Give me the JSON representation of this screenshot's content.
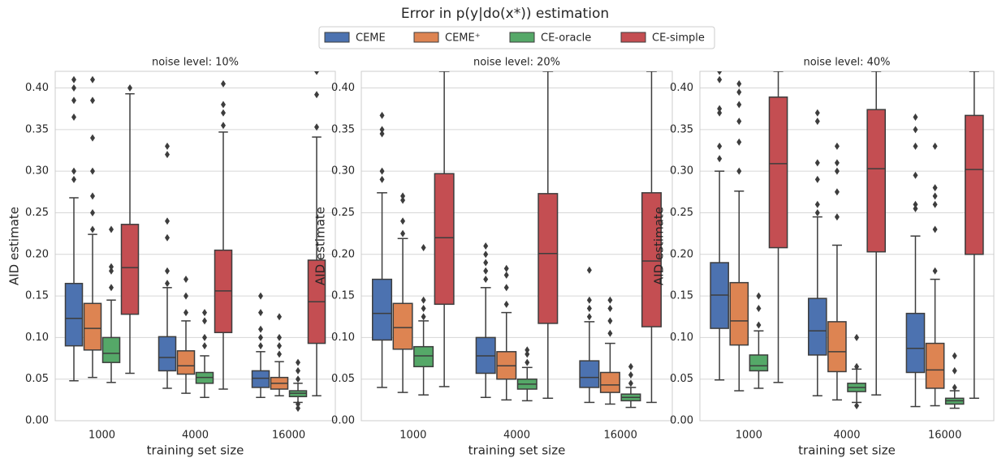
{
  "title": "Error in p(y|do(x*)) estimation",
  "chart_data": [
    {
      "type": "box",
      "title": "noise level: 10%",
      "xlabel": "training set size",
      "ylabel": "AID estimate",
      "categories": [
        "1000",
        "4000",
        "16000"
      ],
      "ylim": [
        0,
        0.42
      ],
      "yticks": [
        {
          "value": 0,
          "label": "0.00"
        },
        {
          "value": 0.05,
          "label": "0.05"
        },
        {
          "value": 0.1,
          "label": "0.10"
        },
        {
          "value": 0.15,
          "label": "0.15"
        },
        {
          "value": 0.2,
          "label": "0.20"
        },
        {
          "value": 0.25,
          "label": "0.25"
        },
        {
          "value": 0.3,
          "label": "0.30"
        },
        {
          "value": 0.35,
          "label": "0.35"
        },
        {
          "value": 0.4,
          "label": "0.40"
        }
      ],
      "grid": true,
      "series": [
        {
          "name": "CEME",
          "color": "#4c72b0",
          "values": [
            {
              "whislo": 0.048,
              "q1": 0.09,
              "med": 0.123,
              "q3": 0.165,
              "whishi": 0.268,
              "fliers": [
                0.29,
                0.3,
                0.365,
                0.385,
                0.4,
                0.41
              ]
            },
            {
              "whislo": 0.039,
              "q1": 0.06,
              "med": 0.076,
              "q3": 0.101,
              "whishi": 0.16,
              "fliers": [
                0.165,
                0.18,
                0.22,
                0.24,
                0.32,
                0.33
              ]
            },
            {
              "whislo": 0.028,
              "q1": 0.04,
              "med": 0.051,
              "q3": 0.06,
              "whishi": 0.083,
              "fliers": [
                0.09,
                0.1,
                0.11,
                0.13,
                0.15
              ]
            }
          ]
        },
        {
          "name": "CEME⁺",
          "color": "#dd8452",
          "values": [
            {
              "whislo": 0.052,
              "q1": 0.085,
              "med": 0.111,
              "q3": 0.141,
              "whishi": 0.224,
              "fliers": [
                0.23,
                0.25,
                0.27,
                0.3,
                0.34,
                0.385,
                0.41
              ]
            },
            {
              "whislo": 0.033,
              "q1": 0.056,
              "med": 0.066,
              "q3": 0.084,
              "whishi": 0.12,
              "fliers": [
                0.13,
                0.15,
                0.17
              ]
            },
            {
              "whislo": 0.03,
              "q1": 0.038,
              "med": 0.045,
              "q3": 0.052,
              "whishi": 0.071,
              "fliers": [
                0.08,
                0.09,
                0.1,
                0.125
              ]
            }
          ]
        },
        {
          "name": "CE-oracle",
          "color": "#55a868",
          "values": [
            {
              "whislo": 0.046,
              "q1": 0.07,
              "med": 0.081,
              "q3": 0.1,
              "whishi": 0.145,
              "fliers": [
                0.16,
                0.18,
                0.185,
                0.23
              ]
            },
            {
              "whislo": 0.028,
              "q1": 0.045,
              "med": 0.052,
              "q3": 0.058,
              "whishi": 0.078,
              "fliers": [
                0.09,
                0.1,
                0.12,
                0.13
              ]
            },
            {
              "whislo": 0.022,
              "q1": 0.029,
              "med": 0.033,
              "q3": 0.036,
              "whishi": 0.045,
              "fliers": [
                0.015,
                0.02,
                0.05,
                0.06,
                0.07
              ]
            }
          ]
        },
        {
          "name": "CE-simple",
          "color": "#c44e52",
          "values": [
            {
              "whislo": 0.057,
              "q1": 0.128,
              "med": 0.184,
              "q3": 0.236,
              "whishi": 0.393,
              "fliers": [
                0.4
              ]
            },
            {
              "whislo": 0.038,
              "q1": 0.106,
              "med": 0.156,
              "q3": 0.205,
              "whishi": 0.347,
              "fliers": [
                0.355,
                0.37,
                0.38,
                0.405
              ]
            },
            {
              "whislo": 0.03,
              "q1": 0.093,
              "med": 0.143,
              "q3": 0.193,
              "whishi": 0.341,
              "fliers": [
                0.353,
                0.392,
                0.42
              ]
            }
          ]
        }
      ]
    },
    {
      "type": "box",
      "title": "noise level: 20%",
      "xlabel": "training set size",
      "ylabel": "AID estimate",
      "categories": [
        "1000",
        "4000",
        "16000"
      ],
      "ylim": [
        0,
        0.42
      ],
      "yticks": [
        {
          "value": 0,
          "label": "0.00"
        },
        {
          "value": 0.05,
          "label": "0.05"
        },
        {
          "value": 0.1,
          "label": "0.10"
        },
        {
          "value": 0.15,
          "label": "0.15"
        },
        {
          "value": 0.2,
          "label": "0.20"
        },
        {
          "value": 0.25,
          "label": "0.25"
        },
        {
          "value": 0.3,
          "label": "0.30"
        },
        {
          "value": 0.35,
          "label": "0.35"
        },
        {
          "value": 0.4,
          "label": "0.40"
        }
      ],
      "grid": true,
      "series": [
        {
          "name": "CEME",
          "color": "#4c72b0",
          "values": [
            {
              "whislo": 0.04,
              "q1": 0.097,
              "med": 0.129,
              "q3": 0.17,
              "whishi": 0.274,
              "fliers": [
                0.29,
                0.3,
                0.345,
                0.35,
                0.367
              ]
            },
            {
              "whislo": 0.028,
              "q1": 0.057,
              "med": 0.078,
              "q3": 0.1,
              "whishi": 0.16,
              "fliers": [
                0.17,
                0.18,
                0.19,
                0.2,
                0.21
              ]
            },
            {
              "whislo": 0.022,
              "q1": 0.04,
              "med": 0.052,
              "q3": 0.072,
              "whishi": 0.119,
              "fliers": [
                0.125,
                0.135,
                0.145,
                0.181
              ]
            }
          ]
        },
        {
          "name": "CEME⁺",
          "color": "#dd8452",
          "values": [
            {
              "whislo": 0.034,
              "q1": 0.086,
              "med": 0.112,
              "q3": 0.141,
              "whishi": 0.219,
              "fliers": [
                0.225,
                0.24,
                0.265,
                0.27
              ]
            },
            {
              "whislo": 0.025,
              "q1": 0.05,
              "med": 0.066,
              "q3": 0.083,
              "whishi": 0.13,
              "fliers": [
                0.14,
                0.16,
                0.175,
                0.183
              ]
            },
            {
              "whislo": 0.02,
              "q1": 0.034,
              "med": 0.043,
              "q3": 0.058,
              "whishi": 0.093,
              "fliers": [
                0.105,
                0.12,
                0.135,
                0.145
              ]
            }
          ]
        },
        {
          "name": "CE-oracle",
          "color": "#55a868",
          "values": [
            {
              "whislo": 0.031,
              "q1": 0.065,
              "med": 0.078,
              "q3": 0.089,
              "whishi": 0.12,
              "fliers": [
                0.125,
                0.135,
                0.145,
                0.208
              ]
            },
            {
              "whislo": 0.024,
              "q1": 0.038,
              "med": 0.044,
              "q3": 0.05,
              "whishi": 0.064,
              "fliers": [
                0.07,
                0.08,
                0.085
              ]
            },
            {
              "whislo": 0.016,
              "q1": 0.024,
              "med": 0.028,
              "q3": 0.032,
              "whishi": 0.04,
              "fliers": [
                0.045,
                0.055,
                0.065
              ]
            }
          ]
        },
        {
          "name": "CE-simple",
          "color": "#c44e52",
          "values": [
            {
              "whislo": 0.041,
              "q1": 0.14,
              "med": 0.22,
              "q3": 0.297,
              "whishi": 0.42,
              "fliers": []
            },
            {
              "whislo": 0.027,
              "q1": 0.117,
              "med": 0.201,
              "q3": 0.273,
              "whishi": 0.42,
              "fliers": []
            },
            {
              "whislo": 0.022,
              "q1": 0.113,
              "med": 0.192,
              "q3": 0.274,
              "whishi": 0.42,
              "fliers": []
            }
          ]
        }
      ]
    },
    {
      "type": "box",
      "title": "noise level: 40%",
      "xlabel": "training set size",
      "ylabel": "AID estimate",
      "categories": [
        "1000",
        "4000",
        "16000"
      ],
      "ylim": [
        0,
        0.42
      ],
      "yticks": [
        {
          "value": 0,
          "label": "0.00"
        },
        {
          "value": 0.05,
          "label": "0.05"
        },
        {
          "value": 0.1,
          "label": "0.10"
        },
        {
          "value": 0.15,
          "label": "0.15"
        },
        {
          "value": 0.2,
          "label": "0.20"
        },
        {
          "value": 0.25,
          "label": "0.25"
        },
        {
          "value": 0.3,
          "label": "0.30"
        },
        {
          "value": 0.35,
          "label": "0.35"
        },
        {
          "value": 0.4,
          "label": "0.40"
        }
      ],
      "grid": true,
      "series": [
        {
          "name": "CEME",
          "color": "#4c72b0",
          "values": [
            {
              "whislo": 0.049,
              "q1": 0.111,
              "med": 0.151,
              "q3": 0.19,
              "whishi": 0.3,
              "fliers": [
                0.315,
                0.33,
                0.37,
                0.375,
                0.41,
                0.42
              ]
            },
            {
              "whislo": 0.03,
              "q1": 0.079,
              "med": 0.108,
              "q3": 0.147,
              "whishi": 0.245,
              "fliers": [
                0.25,
                0.26,
                0.29,
                0.31,
                0.36,
                0.37
              ]
            },
            {
              "whislo": 0.017,
              "q1": 0.058,
              "med": 0.087,
              "q3": 0.129,
              "whishi": 0.222,
              "fliers": [
                0.255,
                0.26,
                0.295,
                0.33,
                0.35,
                0.365
              ]
            }
          ]
        },
        {
          "name": "CEME⁺",
          "color": "#dd8452",
          "values": [
            {
              "whislo": 0.036,
              "q1": 0.091,
              "med": 0.12,
              "q3": 0.166,
              "whishi": 0.276,
              "fliers": [
                0.3,
                0.335,
                0.36,
                0.38,
                0.395,
                0.405
              ]
            },
            {
              "whislo": 0.025,
              "q1": 0.059,
              "med": 0.083,
              "q3": 0.119,
              "whishi": 0.211,
              "fliers": [
                0.245,
                0.275,
                0.3,
                0.31,
                0.33
              ]
            },
            {
              "whislo": 0.018,
              "q1": 0.039,
              "med": 0.061,
              "q3": 0.093,
              "whishi": 0.17,
              "fliers": [
                0.18,
                0.23,
                0.26,
                0.27,
                0.28,
                0.33
              ]
            }
          ]
        },
        {
          "name": "CE-oracle",
          "color": "#55a868",
          "values": [
            {
              "whislo": 0.039,
              "q1": 0.06,
              "med": 0.066,
              "q3": 0.079,
              "whishi": 0.108,
              "fliers": [
                0.115,
                0.135,
                0.15
              ]
            },
            {
              "whislo": 0.022,
              "q1": 0.035,
              "med": 0.04,
              "q3": 0.045,
              "whishi": 0.062,
              "fliers": [
                0.018,
                0.065,
                0.1
              ]
            },
            {
              "whislo": 0.015,
              "q1": 0.02,
              "med": 0.024,
              "q3": 0.027,
              "whishi": 0.036,
              "fliers": [
                0.04,
                0.06,
                0.078
              ]
            }
          ]
        },
        {
          "name": "CE-simple",
          "color": "#c44e52",
          "values": [
            {
              "whislo": 0.046,
              "q1": 0.208,
              "med": 0.309,
              "q3": 0.389,
              "whishi": 0.42,
              "fliers": []
            },
            {
              "whislo": 0.031,
              "q1": 0.203,
              "med": 0.303,
              "q3": 0.374,
              "whishi": 0.42,
              "fliers": []
            },
            {
              "whislo": 0.027,
              "q1": 0.2,
              "med": 0.302,
              "q3": 0.367,
              "whishi": 0.42,
              "fliers": []
            }
          ]
        }
      ]
    }
  ]
}
